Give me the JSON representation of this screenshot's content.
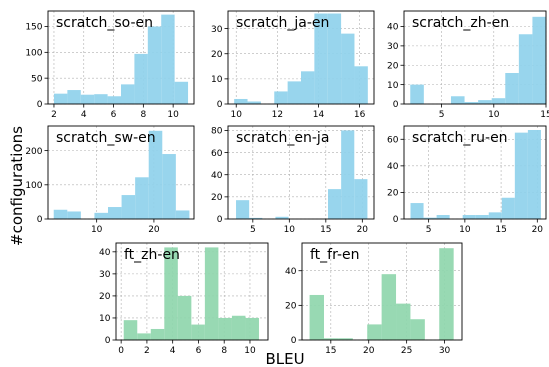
{
  "figure": {
    "ylabel": "#configurations",
    "xlabel": "BLEU"
  },
  "colors": {
    "scratch": "#8fd1ec",
    "ft": "#8fd6ac",
    "grid": "#b0b0b0",
    "axis": "#000000"
  },
  "chart_data": [
    {
      "type": "bar",
      "title": "scratch_so-en",
      "bin_edges": [
        2.0,
        2.9,
        3.8,
        4.7,
        5.6,
        6.5,
        7.4,
        8.3,
        9.2,
        10.1,
        11.0
      ],
      "values": [
        20,
        27,
        18,
        19,
        15,
        38,
        97,
        150,
        173,
        43
      ],
      "xticks": [
        2,
        4,
        6,
        8,
        10
      ],
      "xlim": [
        1.6,
        11.4
      ],
      "yticks": [
        0,
        50,
        100,
        150
      ],
      "ylim": [
        0,
        180
      ],
      "grid": true
    },
    {
      "type": "bar",
      "title": "scratch_ja-en",
      "bin_edges": [
        9.9,
        10.55,
        11.2,
        11.85,
        12.5,
        13.15,
        13.8,
        14.45,
        15.1,
        15.75,
        16.4
      ],
      "values": [
        2,
        1,
        0,
        5,
        9,
        13,
        36,
        36,
        28,
        15
      ],
      "xticks": [
        10,
        12,
        14,
        16
      ],
      "xlim": [
        9.6,
        16.7
      ],
      "yticks": [
        0,
        10,
        20,
        30
      ],
      "ylim": [
        0,
        37
      ],
      "grid": true
    },
    {
      "type": "bar",
      "title": "scratch_zh-en",
      "bin_edges": [
        2.0,
        3.3,
        4.6,
        5.9,
        7.2,
        8.5,
        9.8,
        11.1,
        12.4,
        13.7,
        15.0
      ],
      "values": [
        10,
        0,
        0,
        4,
        1,
        2,
        3,
        16,
        36,
        45
      ],
      "xticks": [
        5,
        10,
        15
      ],
      "xlim": [
        1.4,
        15.0
      ],
      "yticks": [
        0,
        10,
        20,
        30,
        40
      ],
      "ylim": [
        0,
        48
      ],
      "grid": true
    },
    {
      "type": "bar",
      "title": "scratch_sw-en",
      "bin_edges": [
        2.5,
        4.87,
        7.24,
        9.61,
        11.98,
        14.35,
        16.72,
        19.09,
        21.46,
        23.83,
        26.2
      ],
      "values": [
        27,
        22,
        0,
        18,
        35,
        70,
        122,
        258,
        190,
        25
      ],
      "xticks": [
        10,
        20
      ],
      "xlim": [
        1.5,
        27.0
      ],
      "yticks": [
        0,
        100,
        200
      ],
      "ylim": [
        0,
        272
      ],
      "grid": true
    },
    {
      "type": "bar",
      "title": "scratch_en-ja",
      "bin_edges": [
        2.7,
        4.5,
        6.3,
        8.1,
        9.9,
        11.7,
        13.5,
        15.3,
        17.1,
        18.9,
        20.7
      ],
      "values": [
        17,
        1,
        0,
        2,
        0,
        0,
        0,
        27,
        80,
        36
      ],
      "xticks": [
        5,
        10,
        15,
        20
      ],
      "xlim": [
        1.6,
        21.6
      ],
      "yticks": [
        0,
        20,
        40,
        60,
        80
      ],
      "ylim": [
        0,
        84
      ],
      "grid": true
    },
    {
      "type": "bar",
      "title": "scratch_ru-en",
      "bin_edges": [
        2.5,
        4.3,
        6.1,
        7.9,
        9.7,
        11.5,
        13.3,
        15.1,
        16.9,
        18.7,
        20.5
      ],
      "values": [
        12,
        1,
        3,
        0,
        3,
        3,
        5,
        16,
        65,
        67
      ],
      "xticks": [
        5,
        10,
        15,
        20
      ],
      "xlim": [
        1.6,
        21.2
      ],
      "yticks": [
        0,
        20,
        40,
        60
      ],
      "ylim": [
        0,
        70
      ],
      "grid": true
    },
    {
      "type": "bar",
      "title": "ft_zh-en",
      "bin_edges": [
        0.2,
        1.25,
        2.3,
        3.35,
        4.4,
        5.45,
        6.5,
        7.55,
        8.6,
        9.65,
        10.7
      ],
      "values": [
        9,
        3,
        5,
        42,
        20,
        7,
        42,
        10,
        11,
        10
      ],
      "xticks": [
        0,
        2,
        4,
        6,
        8,
        10
      ],
      "xlim": [
        -0.4,
        11.4
      ],
      "yticks": [
        0,
        10,
        20,
        30,
        40
      ],
      "ylim": [
        0,
        44
      ],
      "grid": true
    },
    {
      "type": "bar",
      "title": "ft_fr-en",
      "bin_edges": [
        12.2,
        14.1,
        16.0,
        17.9,
        19.8,
        21.7,
        23.6,
        25.5,
        27.4,
        29.3,
        31.2
      ],
      "values": [
        26,
        1,
        1,
        0,
        9,
        38,
        21,
        12,
        0,
        53
      ],
      "xticks": [
        15,
        20,
        25,
        30
      ],
      "xlim": [
        11.2,
        32.3
      ],
      "yticks": [
        0,
        20,
        40
      ],
      "ylim": [
        0,
        56
      ],
      "grid": true
    }
  ]
}
